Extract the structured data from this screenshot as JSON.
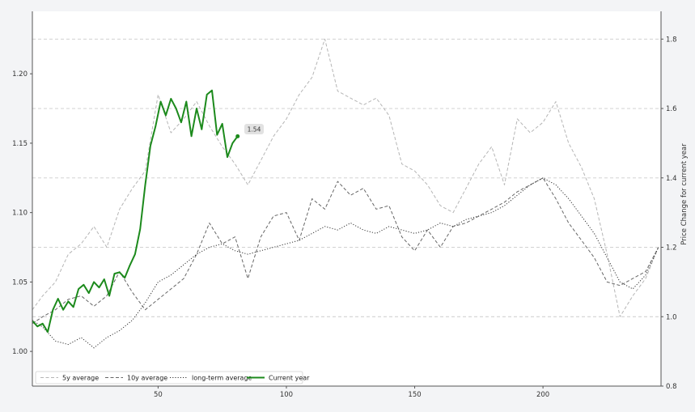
{
  "chart_data": {
    "type": "line",
    "title": "",
    "xlabel": "",
    "ylabel_left": "",
    "ylabel_right": "Price Change for current year",
    "xlim": [
      1,
      246
    ],
    "ylim_left": [
      0.975,
      1.245
    ],
    "ylim_right": [
      0.8,
      1.88
    ],
    "x_ticks": [
      50,
      100,
      150,
      200
    ],
    "y_ticks_left": [
      1.0,
      1.05,
      1.1,
      1.15,
      1.2
    ],
    "y_tick_labels_left": [
      "1.00",
      "1.05",
      "1.10",
      "1.15",
      "1.20"
    ],
    "y_ticks_right": [
      0.8,
      1.0,
      1.2,
      1.4,
      1.6,
      1.8
    ],
    "y_tick_labels_right": [
      "0.8",
      "1.0",
      "1.2",
      "1.4",
      "1.6",
      "1.8"
    ],
    "grid": "horizontal dashed at right-axis ticks",
    "legend_position": "lower-left",
    "annotation": {
      "text": "1.54",
      "x": 83,
      "y_right": 1.54
    },
    "series": [
      {
        "name": "5y average",
        "axis": "right",
        "style": "dashed",
        "color": "#b5b5b5",
        "x": [
          1,
          5,
          10,
          15,
          20,
          25,
          30,
          35,
          40,
          45,
          50,
          55,
          60,
          65,
          70,
          75,
          80,
          85,
          90,
          95,
          100,
          105,
          110,
          115,
          120,
          125,
          130,
          135,
          140,
          145,
          150,
          155,
          160,
          165,
          170,
          175,
          180,
          185,
          190,
          195,
          200,
          205,
          210,
          215,
          220,
          225,
          230,
          235,
          240,
          245
        ],
        "values": [
          1.02,
          1.06,
          1.1,
          1.18,
          1.21,
          1.26,
          1.2,
          1.31,
          1.37,
          1.42,
          1.64,
          1.53,
          1.57,
          1.62,
          1.55,
          1.49,
          1.44,
          1.38,
          1.45,
          1.52,
          1.57,
          1.64,
          1.69,
          1.8,
          1.65,
          1.63,
          1.61,
          1.63,
          1.58,
          1.44,
          1.42,
          1.38,
          1.32,
          1.3,
          1.37,
          1.44,
          1.49,
          1.38,
          1.57,
          1.53,
          1.56,
          1.62,
          1.5,
          1.43,
          1.34,
          1.18,
          1.0,
          1.06,
          1.11,
          1.2
        ]
      },
      {
        "name": "10y average",
        "axis": "right",
        "style": "dashed",
        "color": "#666666",
        "x": [
          1,
          5,
          10,
          15,
          20,
          25,
          30,
          35,
          40,
          45,
          50,
          55,
          60,
          65,
          70,
          75,
          80,
          85,
          90,
          95,
          100,
          105,
          110,
          115,
          120,
          125,
          130,
          135,
          140,
          145,
          150,
          155,
          160,
          165,
          170,
          175,
          180,
          185,
          190,
          195,
          200,
          205,
          210,
          215,
          220,
          225,
          230,
          235,
          240,
          245
        ],
        "values": [
          0.98,
          1.0,
          1.02,
          1.05,
          1.06,
          1.03,
          1.06,
          1.13,
          1.07,
          1.02,
          1.05,
          1.08,
          1.11,
          1.18,
          1.27,
          1.21,
          1.23,
          1.11,
          1.23,
          1.29,
          1.3,
          1.22,
          1.34,
          1.31,
          1.39,
          1.35,
          1.37,
          1.31,
          1.32,
          1.23,
          1.19,
          1.25,
          1.2,
          1.26,
          1.27,
          1.29,
          1.31,
          1.33,
          1.36,
          1.38,
          1.4,
          1.34,
          1.27,
          1.22,
          1.17,
          1.1,
          1.09,
          1.11,
          1.13,
          1.2
        ]
      },
      {
        "name": "long-term average",
        "axis": "right",
        "style": "dotted",
        "color": "#333333",
        "x": [
          1,
          5,
          10,
          15,
          20,
          25,
          30,
          35,
          40,
          45,
          50,
          55,
          60,
          65,
          70,
          75,
          80,
          85,
          90,
          95,
          100,
          105,
          110,
          115,
          120,
          125,
          130,
          135,
          140,
          145,
          150,
          155,
          160,
          165,
          170,
          175,
          180,
          185,
          190,
          195,
          200,
          205,
          210,
          215,
          220,
          225,
          230,
          235,
          240,
          245
        ],
        "values": [
          0.99,
          0.97,
          0.93,
          0.92,
          0.94,
          0.91,
          0.94,
          0.96,
          0.99,
          1.04,
          1.1,
          1.12,
          1.15,
          1.18,
          1.2,
          1.21,
          1.19,
          1.18,
          1.19,
          1.2,
          1.21,
          1.22,
          1.24,
          1.26,
          1.25,
          1.27,
          1.25,
          1.24,
          1.26,
          1.25,
          1.24,
          1.25,
          1.27,
          1.26,
          1.28,
          1.29,
          1.3,
          1.32,
          1.35,
          1.38,
          1.4,
          1.38,
          1.34,
          1.29,
          1.24,
          1.17,
          1.1,
          1.08,
          1.12,
          1.2
        ]
      },
      {
        "name": "Current year",
        "axis": "left",
        "style": "solid",
        "color": "#1c8a1c",
        "x": [
          1,
          3,
          5,
          7,
          9,
          11,
          13,
          15,
          17,
          19,
          21,
          23,
          25,
          27,
          29,
          31,
          33,
          35,
          37,
          39,
          41,
          43,
          45,
          47,
          49,
          51,
          53,
          55,
          57,
          59,
          61,
          63,
          65,
          67,
          69,
          71,
          73,
          75,
          77,
          79,
          81
        ],
        "values": [
          1.022,
          1.018,
          1.02,
          1.014,
          1.03,
          1.038,
          1.03,
          1.036,
          1.032,
          1.045,
          1.048,
          1.042,
          1.05,
          1.046,
          1.052,
          1.04,
          1.056,
          1.057,
          1.053,
          1.062,
          1.07,
          1.088,
          1.12,
          1.148,
          1.162,
          1.18,
          1.17,
          1.182,
          1.175,
          1.165,
          1.18,
          1.155,
          1.175,
          1.16,
          1.185,
          1.188,
          1.156,
          1.164,
          1.14,
          1.15,
          1.155
        ]
      }
    ]
  }
}
